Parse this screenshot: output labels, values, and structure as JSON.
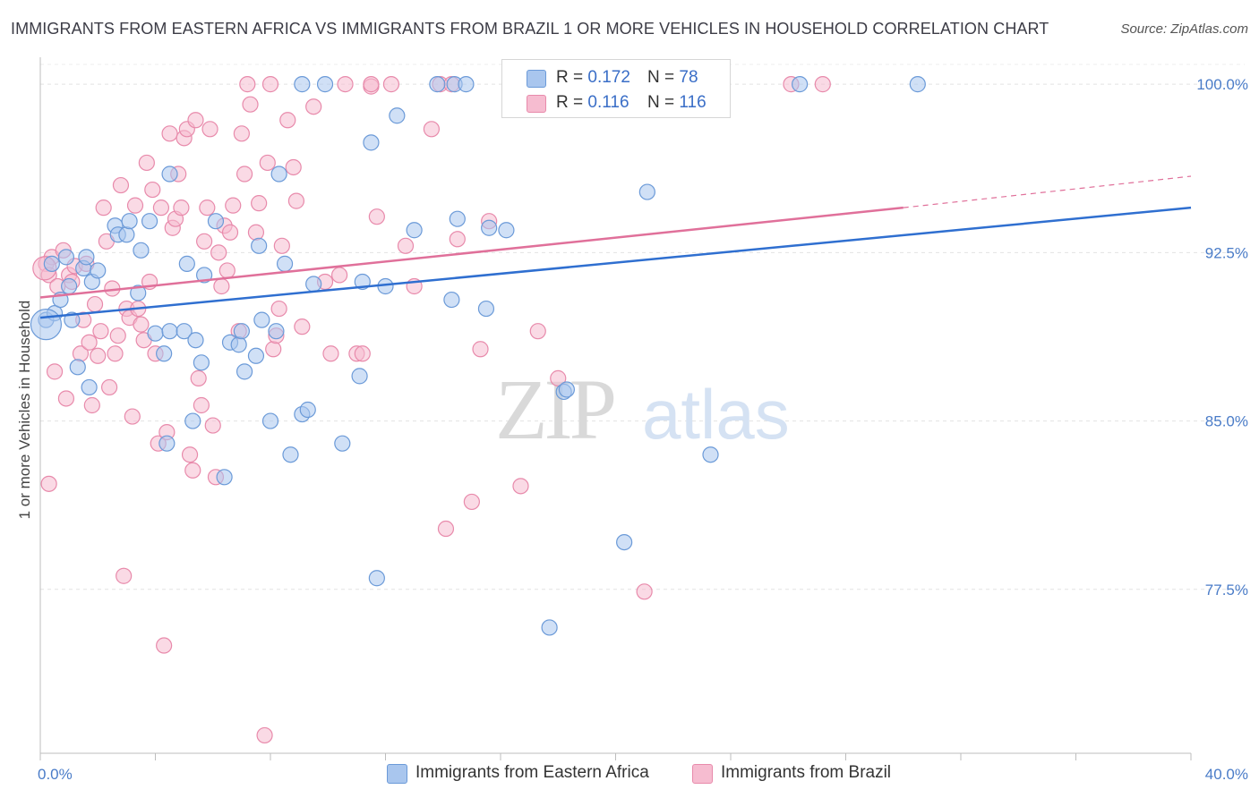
{
  "title": "IMMIGRANTS FROM EASTERN AFRICA VS IMMIGRANTS FROM BRAZIL 1 OR MORE VEHICLES IN HOUSEHOLD CORRELATION CHART",
  "source": "Source: ZipAtlas.com",
  "watermark": {
    "zip": "ZIP",
    "atlas": "atlas"
  },
  "legend_top": {
    "rows": [
      {
        "r_label": "R = ",
        "r_value": "0.172",
        "n_label": "N = ",
        "n_value": "78",
        "color": "#a9c6ee",
        "stroke": "#6b9ad8"
      },
      {
        "r_label": "R = ",
        "r_value": "0.116",
        "n_label": "N = ",
        "n_value": "116",
        "color": "#f6bcd0",
        "stroke": "#e88aab"
      }
    ]
  },
  "legend_bottom": [
    {
      "label": "Immigrants from Eastern Africa",
      "color": "#a9c6ee",
      "stroke": "#6b9ad8"
    },
    {
      "label": "Immigrants from Brazil",
      "color": "#f6bcd0",
      "stroke": "#e88aab"
    }
  ],
  "chart_data": {
    "type": "scatter",
    "title": "IMMIGRANTS FROM EASTERN AFRICA VS IMMIGRANTS FROM BRAZIL 1 OR MORE VEHICLES IN HOUSEHOLD CORRELATION CHART",
    "xlabel": "",
    "ylabel": "1 or more Vehicles in Household",
    "xlim": [
      0,
      40
    ],
    "ylim": [
      70.2,
      101.2
    ],
    "x_tick_labels": [
      "0.0%",
      "40.0%"
    ],
    "y_ticks": [
      100.0,
      92.5,
      85.0,
      77.5
    ],
    "y_tick_labels": [
      "100.0%",
      "92.5%",
      "85.0%",
      "77.5%"
    ],
    "grid": true,
    "legend_position": "top-center",
    "series": [
      {
        "name": "Immigrants from Eastern Africa",
        "color": "#6b9ad8",
        "fill": "#a9c6ee",
        "trend": {
          "x": [
            0,
            40
          ],
          "y": [
            89.6,
            94.5
          ]
        },
        "points": [
          [
            0.2,
            89.5
          ],
          [
            0.5,
            89.8
          ],
          [
            0.7,
            90.4
          ],
          [
            0.4,
            92.0
          ],
          [
            0.9,
            92.3
          ],
          [
            1.0,
            91.0
          ],
          [
            1.1,
            89.5
          ],
          [
            1.5,
            91.8
          ],
          [
            1.6,
            92.3
          ],
          [
            1.8,
            91.2
          ],
          [
            2.0,
            91.7
          ],
          [
            1.7,
            86.5
          ],
          [
            1.3,
            87.4
          ],
          [
            2.6,
            93.7
          ],
          [
            2.7,
            93.3
          ],
          [
            3.0,
            93.3
          ],
          [
            3.1,
            93.9
          ],
          [
            3.5,
            92.6
          ],
          [
            3.4,
            90.7
          ],
          [
            3.8,
            93.9
          ],
          [
            4.0,
            88.9
          ],
          [
            4.3,
            88.0
          ],
          [
            4.5,
            89.0
          ],
          [
            4.4,
            84.0
          ],
          [
            4.5,
            96.0
          ],
          [
            5.1,
            92.0
          ],
          [
            5.3,
            85.0
          ],
          [
            5.0,
            89.0
          ],
          [
            5.4,
            88.6
          ],
          [
            5.6,
            87.6
          ],
          [
            5.7,
            91.5
          ],
          [
            6.1,
            93.9
          ],
          [
            6.4,
            82.5
          ],
          [
            6.6,
            88.5
          ],
          [
            6.9,
            88.4
          ],
          [
            7.0,
            89.0
          ],
          [
            7.1,
            87.2
          ],
          [
            7.5,
            87.9
          ],
          [
            7.6,
            92.8
          ],
          [
            7.7,
            89.5
          ],
          [
            8.0,
            85.0
          ],
          [
            8.2,
            89.0
          ],
          [
            8.3,
            96.0
          ],
          [
            8.5,
            92.0
          ],
          [
            8.7,
            83.5
          ],
          [
            9.1,
            85.3
          ],
          [
            9.3,
            85.5
          ],
          [
            9.5,
            91.1
          ],
          [
            9.1,
            100.0
          ],
          [
            9.9,
            100.0
          ],
          [
            10.5,
            84.0
          ],
          [
            11.1,
            87.0
          ],
          [
            11.2,
            91.2
          ],
          [
            11.5,
            97.4
          ],
          [
            11.7,
            78.0
          ],
          [
            12.0,
            91.0
          ],
          [
            12.4,
            98.6
          ],
          [
            13.0,
            93.5
          ],
          [
            13.8,
            100.0
          ],
          [
            14.3,
            90.4
          ],
          [
            14.4,
            100.0
          ],
          [
            14.5,
            94.0
          ],
          [
            14.8,
            100.0
          ],
          [
            15.5,
            90.0
          ],
          [
            15.6,
            93.6
          ],
          [
            16.2,
            93.5
          ],
          [
            17.7,
            75.8
          ],
          [
            18.2,
            86.3
          ],
          [
            18.3,
            86.4
          ],
          [
            19.7,
            100.0
          ],
          [
            20.3,
            79.6
          ],
          [
            21.1,
            95.2
          ],
          [
            22.3,
            100.0
          ],
          [
            23.3,
            83.5
          ],
          [
            26.4,
            100.0
          ],
          [
            30.5,
            100.0
          ]
        ]
      },
      {
        "name": "Immigrants from Brazil",
        "color": "#e88aab",
        "fill": "#f6bcd0",
        "trend": {
          "x": [
            0,
            30
          ],
          "y": [
            90.5,
            94.5
          ]
        },
        "trend_dashed": {
          "x": [
            30,
            40
          ],
          "y": [
            94.5,
            95.9
          ]
        },
        "points": [
          [
            0.2,
            92.0
          ],
          [
            0.3,
            91.5
          ],
          [
            0.4,
            92.3
          ],
          [
            0.3,
            82.2
          ],
          [
            0.5,
            87.2
          ],
          [
            0.6,
            91.0
          ],
          [
            0.8,
            92.6
          ],
          [
            0.9,
            86.0
          ],
          [
            1.0,
            91.5
          ],
          [
            1.1,
            91.2
          ],
          [
            1.2,
            91.9
          ],
          [
            1.4,
            88.0
          ],
          [
            1.5,
            89.5
          ],
          [
            1.6,
            92.0
          ],
          [
            1.7,
            88.5
          ],
          [
            1.8,
            85.7
          ],
          [
            1.9,
            90.2
          ],
          [
            2.0,
            87.9
          ],
          [
            2.1,
            89.0
          ],
          [
            2.2,
            94.5
          ],
          [
            2.3,
            93.0
          ],
          [
            2.4,
            86.5
          ],
          [
            2.5,
            90.9
          ],
          [
            2.6,
            88.0
          ],
          [
            2.7,
            88.8
          ],
          [
            2.8,
            95.5
          ],
          [
            2.9,
            78.1
          ],
          [
            3.0,
            90.0
          ],
          [
            3.1,
            89.6
          ],
          [
            3.2,
            85.2
          ],
          [
            3.3,
            94.6
          ],
          [
            3.4,
            90.0
          ],
          [
            3.5,
            89.3
          ],
          [
            3.6,
            88.6
          ],
          [
            3.7,
            96.5
          ],
          [
            3.8,
            91.2
          ],
          [
            3.9,
            95.3
          ],
          [
            4.0,
            88.0
          ],
          [
            4.1,
            84.0
          ],
          [
            4.2,
            94.5
          ],
          [
            4.3,
            75.0
          ],
          [
            4.4,
            84.5
          ],
          [
            4.5,
            97.8
          ],
          [
            4.6,
            93.6
          ],
          [
            4.7,
            94.0
          ],
          [
            4.8,
            96.0
          ],
          [
            4.9,
            94.5
          ],
          [
            5.0,
            97.6
          ],
          [
            5.1,
            98.0
          ],
          [
            5.2,
            83.5
          ],
          [
            5.3,
            82.8
          ],
          [
            5.4,
            98.4
          ],
          [
            5.5,
            86.9
          ],
          [
            5.6,
            85.7
          ],
          [
            5.7,
            93.0
          ],
          [
            5.8,
            94.5
          ],
          [
            5.9,
            98.0
          ],
          [
            6.0,
            84.8
          ],
          [
            6.1,
            82.5
          ],
          [
            6.2,
            92.5
          ],
          [
            6.3,
            91.0
          ],
          [
            6.4,
            93.7
          ],
          [
            6.5,
            91.7
          ],
          [
            6.6,
            93.4
          ],
          [
            6.7,
            94.6
          ],
          [
            6.9,
            89.0
          ],
          [
            7.0,
            97.8
          ],
          [
            7.1,
            96.0
          ],
          [
            7.2,
            100.0
          ],
          [
            7.3,
            99.1
          ],
          [
            7.5,
            93.4
          ],
          [
            7.6,
            94.7
          ],
          [
            7.8,
            71.0
          ],
          [
            7.9,
            96.5
          ],
          [
            8.0,
            100.0
          ],
          [
            8.1,
            88.2
          ],
          [
            8.2,
            88.8
          ],
          [
            8.3,
            90.0
          ],
          [
            8.4,
            92.8
          ],
          [
            8.6,
            98.4
          ],
          [
            8.8,
            96.3
          ],
          [
            8.9,
            94.8
          ],
          [
            9.1,
            89.2
          ],
          [
            9.5,
            99.0
          ],
          [
            9.9,
            91.2
          ],
          [
            10.1,
            88.0
          ],
          [
            10.4,
            91.5
          ],
          [
            10.6,
            100.0
          ],
          [
            11.0,
            88.0
          ],
          [
            11.2,
            88.0
          ],
          [
            11.5,
            99.9
          ],
          [
            11.7,
            94.1
          ],
          [
            11.5,
            100.0
          ],
          [
            12.2,
            100.0
          ],
          [
            12.7,
            92.8
          ],
          [
            13.0,
            91.0
          ],
          [
            13.6,
            98.0
          ],
          [
            13.9,
            100.0
          ],
          [
            14.1,
            80.2
          ],
          [
            14.3,
            100.0
          ],
          [
            14.5,
            93.1
          ],
          [
            15.0,
            81.4
          ],
          [
            15.3,
            88.2
          ],
          [
            15.6,
            93.9
          ],
          [
            16.7,
            82.1
          ],
          [
            17.1,
            100.0
          ],
          [
            17.3,
            89.0
          ],
          [
            18.0,
            86.9
          ],
          [
            19.4,
            100.0
          ],
          [
            19.6,
            100.0
          ],
          [
            21.0,
            77.4
          ],
          [
            22.4,
            100.0
          ],
          [
            26.1,
            100.0
          ],
          [
            27.2,
            100.0
          ]
        ]
      }
    ]
  }
}
